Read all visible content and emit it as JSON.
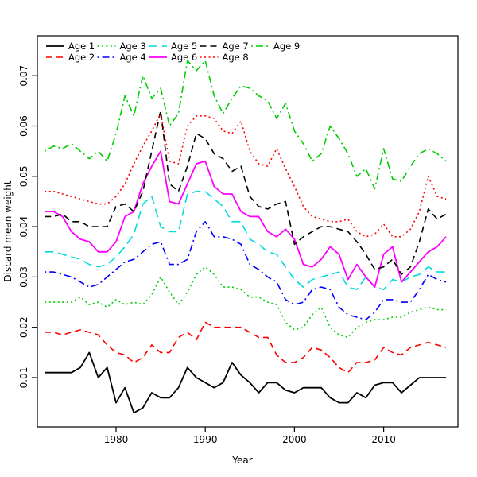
{
  "chart_data": {
    "type": "line",
    "title": "",
    "xlabel": "Year",
    "ylabel": "Discard mean weight",
    "x_ticks": [
      1980,
      1990,
      2000,
      2010
    ],
    "y_ticks": [
      0.01,
      0.02,
      0.03,
      0.04,
      0.05,
      0.06,
      0.07
    ],
    "xlim": [
      1971.2,
      2018.0
    ],
    "ylim": [
      0.0015,
      0.0779
    ],
    "grid": false,
    "legend_position": "top-left",
    "years": [
      1972,
      1973,
      1974,
      1975,
      1976,
      1977,
      1978,
      1979,
      1980,
      1981,
      1982,
      1983,
      1984,
      1985,
      1986,
      1987,
      1988,
      1989,
      1990,
      1991,
      1992,
      1993,
      1994,
      1995,
      1996,
      1997,
      1998,
      1999,
      2000,
      2001,
      2002,
      2003,
      2004,
      2005,
      2006,
      2007,
      2008,
      2009,
      2010,
      2011,
      2012,
      2013,
      2014,
      2015,
      2016,
      2017
    ],
    "series": [
      {
        "name": "Age 1",
        "color": "#000000",
        "line_style": "solid",
        "width": 1.8,
        "values": [
          0.011,
          0.011,
          0.011,
          0.011,
          0.012,
          0.015,
          0.01,
          0.012,
          0.005,
          0.008,
          0.003,
          0.004,
          0.007,
          0.006,
          0.006,
          0.008,
          0.012,
          0.01,
          0.009,
          0.008,
          0.009,
          0.013,
          0.0105,
          0.009,
          0.007,
          0.009,
          0.009,
          0.0075,
          0.007,
          0.008,
          0.008,
          0.008,
          0.006,
          0.005,
          0.005,
          0.007,
          0.006,
          0.0085,
          0.009,
          0.009,
          0.007,
          0.0085,
          0.01,
          0.01,
          0.01,
          0.01
        ]
      },
      {
        "name": "Age 2",
        "color": "#FF0000",
        "line_style": "dashed",
        "width": 1.6,
        "values": [
          0.019,
          0.019,
          0.0185,
          0.019,
          0.0195,
          0.019,
          0.0185,
          0.0165,
          0.015,
          0.0145,
          0.013,
          0.014,
          0.0165,
          0.015,
          0.015,
          0.018,
          0.019,
          0.0175,
          0.021,
          0.02,
          0.02,
          0.02,
          0.02,
          0.019,
          0.018,
          0.018,
          0.0145,
          0.013,
          0.013,
          0.014,
          0.016,
          0.0155,
          0.014,
          0.012,
          0.011,
          0.013,
          0.013,
          0.0135,
          0.016,
          0.015,
          0.0145,
          0.016,
          0.0165,
          0.017,
          0.0165,
          0.016
        ]
      },
      {
        "name": "Age 3",
        "color": "#00CD00",
        "line_style": "dotted",
        "width": 1.6,
        "values": [
          0.025,
          0.025,
          0.025,
          0.025,
          0.026,
          0.0245,
          0.025,
          0.024,
          0.0255,
          0.0245,
          0.025,
          0.0245,
          0.0265,
          0.03,
          0.027,
          0.0245,
          0.027,
          0.0305,
          0.032,
          0.0305,
          0.028,
          0.028,
          0.0275,
          0.026,
          0.026,
          0.025,
          0.0245,
          0.021,
          0.0195,
          0.02,
          0.0225,
          0.024,
          0.02,
          0.0185,
          0.018,
          0.02,
          0.021,
          0.0215,
          0.0215,
          0.022,
          0.022,
          0.023,
          0.0235,
          0.024,
          0.0235,
          0.0235
        ]
      },
      {
        "name": "Age 4",
        "color": "#0000FF",
        "line_style": "dashdot",
        "width": 1.6,
        "values": [
          0.031,
          0.031,
          0.0305,
          0.03,
          0.029,
          0.028,
          0.0285,
          0.03,
          0.0315,
          0.033,
          0.0335,
          0.035,
          0.0365,
          0.037,
          0.0325,
          0.0325,
          0.0335,
          0.039,
          0.041,
          0.038,
          0.038,
          0.0375,
          0.0365,
          0.0325,
          0.0315,
          0.03,
          0.029,
          0.0255,
          0.0245,
          0.025,
          0.0275,
          0.028,
          0.0275,
          0.024,
          0.0225,
          0.022,
          0.0215,
          0.023,
          0.0255,
          0.0255,
          0.025,
          0.025,
          0.0275,
          0.0305,
          0.0295,
          0.029
        ]
      },
      {
        "name": "Age 5",
        "color": "#00DCDC",
        "line_style": "longdash",
        "width": 1.6,
        "values": [
          0.035,
          0.035,
          0.0345,
          0.034,
          0.0335,
          0.0325,
          0.032,
          0.0325,
          0.034,
          0.036,
          0.0385,
          0.0445,
          0.046,
          0.04,
          0.039,
          0.039,
          0.0465,
          0.047,
          0.047,
          0.0455,
          0.044,
          0.041,
          0.041,
          0.0375,
          0.0365,
          0.035,
          0.0345,
          0.032,
          0.0295,
          0.028,
          0.0295,
          0.03,
          0.0305,
          0.031,
          0.028,
          0.0275,
          0.03,
          0.028,
          0.0275,
          0.0295,
          0.029,
          0.03,
          0.0305,
          0.032,
          0.031,
          0.031
        ]
      },
      {
        "name": "Age 6",
        "color": "#FF00FF",
        "line_style": "solid",
        "width": 1.8,
        "values": [
          0.043,
          0.043,
          0.042,
          0.039,
          0.0375,
          0.037,
          0.035,
          0.035,
          0.037,
          0.042,
          0.043,
          0.0485,
          0.052,
          0.055,
          0.045,
          0.0445,
          0.0485,
          0.0525,
          0.053,
          0.048,
          0.0465,
          0.0465,
          0.043,
          0.042,
          0.042,
          0.039,
          0.038,
          0.0395,
          0.0375,
          0.0325,
          0.032,
          0.0335,
          0.036,
          0.0345,
          0.0295,
          0.0325,
          0.03,
          0.028,
          0.0345,
          0.036,
          0.029,
          0.031,
          0.033,
          0.035,
          0.036,
          0.038
        ]
      },
      {
        "name": "Age 7",
        "color": "#000000",
        "line_style": "dashed",
        "width": 1.6,
        "values": [
          0.042,
          0.042,
          0.0425,
          0.041,
          0.041,
          0.04,
          0.04,
          0.04,
          0.044,
          0.0445,
          0.043,
          0.047,
          0.055,
          0.063,
          0.0485,
          0.047,
          0.052,
          0.0585,
          0.0575,
          0.0545,
          0.0535,
          0.051,
          0.052,
          0.046,
          0.044,
          0.0435,
          0.0445,
          0.045,
          0.0365,
          0.038,
          0.039,
          0.04,
          0.04,
          0.0395,
          0.039,
          0.037,
          0.0345,
          0.0315,
          0.032,
          0.0335,
          0.0305,
          0.032,
          0.037,
          0.0435,
          0.0415,
          0.0425
        ]
      },
      {
        "name": "Age 8",
        "color": "#FF0000",
        "line_style": "dotted",
        "width": 1.6,
        "values": [
          0.047,
          0.047,
          0.0465,
          0.046,
          0.0455,
          0.045,
          0.0445,
          0.0445,
          0.046,
          0.0485,
          0.0525,
          0.056,
          0.059,
          0.0625,
          0.053,
          0.0525,
          0.06,
          0.062,
          0.062,
          0.0615,
          0.059,
          0.0585,
          0.061,
          0.055,
          0.0525,
          0.052,
          0.0555,
          0.0515,
          0.048,
          0.044,
          0.042,
          0.0415,
          0.041,
          0.041,
          0.0415,
          0.039,
          0.038,
          0.0385,
          0.0405,
          0.038,
          0.038,
          0.0395,
          0.043,
          0.05,
          0.046,
          0.0455
        ]
      },
      {
        "name": "Age 9",
        "color": "#00CD00",
        "line_style": "dashdot",
        "width": 1.6,
        "values": [
          0.055,
          0.056,
          0.0555,
          0.0565,
          0.055,
          0.0535,
          0.055,
          0.053,
          0.0585,
          0.066,
          0.062,
          0.07,
          0.0655,
          0.0675,
          0.06,
          0.0625,
          0.073,
          0.071,
          0.073,
          0.066,
          0.0625,
          0.0655,
          0.068,
          0.0675,
          0.066,
          0.065,
          0.0615,
          0.0645,
          0.059,
          0.0565,
          0.053,
          0.0545,
          0.06,
          0.0575,
          0.0545,
          0.05,
          0.0515,
          0.0475,
          0.0555,
          0.0495,
          0.049,
          0.052,
          0.0545,
          0.0555,
          0.0545,
          0.053
        ]
      }
    ]
  }
}
